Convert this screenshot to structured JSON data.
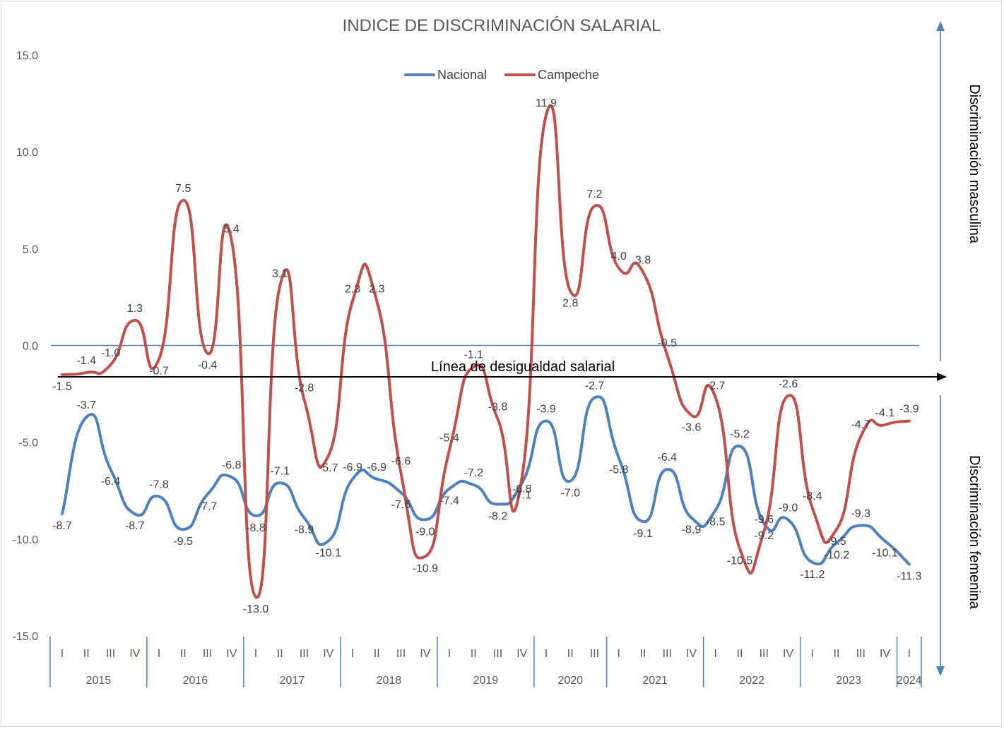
{
  "chart_data": {
    "type": "line",
    "title": "INDICE DE DISCRIMINACIÓN SALARIAL",
    "ylim": [
      -15,
      15
    ],
    "yticks": [
      "15.0",
      "10.0",
      "5.0",
      "0.0",
      "-5.0",
      "-10.0",
      "-15.0"
    ],
    "ytick_values": [
      15,
      10,
      5,
      0,
      -5,
      -10,
      -15
    ],
    "legend_position": "top-center",
    "quarters": [
      "I",
      "II",
      "III",
      "IV",
      "I",
      "II",
      "III",
      "IV",
      "I",
      "II",
      "III",
      "IV",
      "I",
      "II",
      "III",
      "IV",
      "I",
      "II",
      "III",
      "IV",
      "I",
      "II",
      "III",
      "I",
      "II",
      "III",
      "IV",
      "I",
      "II",
      "III",
      "IV",
      "I",
      "II",
      "III",
      "IV",
      "I"
    ],
    "years": [
      {
        "label": "2015",
        "start": 0,
        "end": 3
      },
      {
        "label": "2016",
        "start": 4,
        "end": 7
      },
      {
        "label": "2017",
        "start": 8,
        "end": 11
      },
      {
        "label": "2018",
        "start": 12,
        "end": 15
      },
      {
        "label": "2019",
        "start": 16,
        "end": 19
      },
      {
        "label": "2020",
        "start": 20,
        "end": 22
      },
      {
        "label": "2021",
        "start": 23,
        "end": 26
      },
      {
        "label": "2022",
        "start": 27,
        "end": 30
      },
      {
        "label": "2023",
        "start": 31,
        "end": 34
      },
      {
        "label": "2024",
        "start": 35,
        "end": 35
      }
    ],
    "series": [
      {
        "name": "Nacional",
        "color": "#4f81bd",
        "values": [
          -8.7,
          -3.7,
          -6.4,
          -8.7,
          -7.8,
          -9.5,
          -7.7,
          -6.8,
          -8.8,
          -7.1,
          -8.9,
          -10.1,
          -6.9,
          -6.9,
          -7.6,
          -9.0,
          -7.4,
          -7.2,
          -8.2,
          -7.1,
          -3.9,
          -7.0,
          -2.7,
          -5.8,
          -9.1,
          -6.4,
          -8.9,
          -8.5,
          -5.2,
          -9.2,
          -9.0,
          -11.2,
          -10.2,
          -9.3,
          -10.1,
          -11.3
        ],
        "labels": [
          "-8.7",
          "-3.7",
          "-6.4",
          "-8.7",
          "-7.8",
          "-9.5",
          "-7.7",
          "-6.8",
          "-8.8",
          "-7.1",
          "-8.9",
          "-10.1",
          "-6.9",
          "-6.9",
          "-7.6",
          "-9.0",
          "-7.4",
          "-7.2",
          "-8.2",
          "-7.1",
          "-3.9",
          "-7.0",
          "-2.7",
          "-5.8",
          "-9.1",
          "-6.4",
          "-8.9",
          "-8.5",
          "-5.2",
          "-9.2",
          "-9.0",
          "-11.2",
          "-10.2",
          "-9.3",
          "-10.1",
          "-11.3"
        ]
      },
      {
        "name": "Campeche",
        "color": "#c0504d",
        "values": [
          -1.5,
          -1.4,
          -1.0,
          1.3,
          -0.7,
          7.5,
          -0.4,
          5.4,
          -13.0,
          3.1,
          -2.8,
          -5.7,
          2.3,
          2.3,
          -6.6,
          -10.9,
          -5.4,
          -1.1,
          -3.8,
          -6.8,
          11.9,
          2.8,
          7.2,
          4.0,
          3.8,
          -0.5,
          -3.6,
          -2.7,
          -10.5,
          -9.6,
          -2.6,
          -8.4,
          -9.5,
          -4.7,
          -4.1,
          -3.9
        ],
        "labels": [
          "-1.5",
          "-1.4",
          "-1.0",
          "1.3",
          "-0.7",
          "7.5",
          "-0.4",
          "5.4",
          "-13.0",
          "3.1",
          "-2.8",
          "-5.7",
          "2.3",
          "2.3",
          "-6.6",
          "-10.9",
          "-5.4",
          "-1.1",
          "-3.8",
          "-6.8",
          "11.9",
          "2.8",
          "7.2",
          "4.0",
          "3.8",
          "-0.5",
          "-3.6",
          "-2.7",
          "-10.5",
          "-9.6",
          "-2.6",
          "-8.4",
          "-9.5",
          "-4.7",
          "-4.1",
          "-3.9"
        ]
      }
    ],
    "reference_line": {
      "value": 0,
      "color": "#4f81bd"
    },
    "arrow_label": "Línea de desigualdad salarial",
    "side_labels": {
      "upper": "Discriminación masculina",
      "lower": "Discriminación femenina"
    },
    "grid": false
  }
}
